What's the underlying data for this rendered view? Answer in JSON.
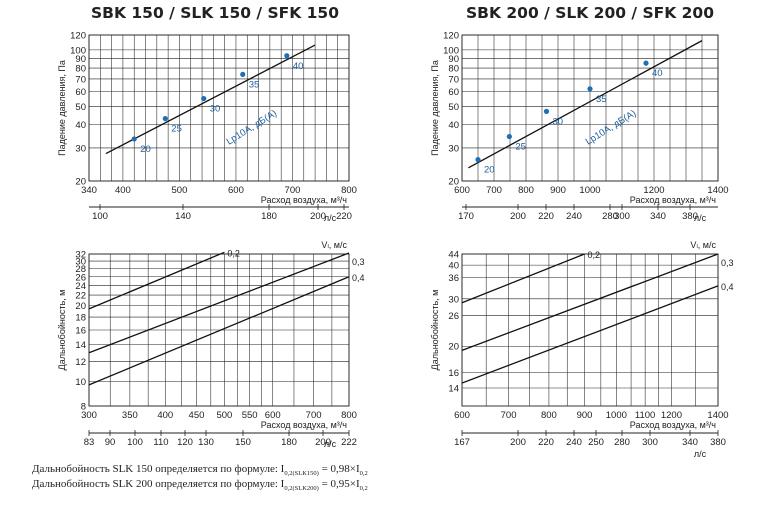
{
  "chart_data": [
    {
      "type": "line",
      "title": "SBK 150 / SLK 150 / SFK 150",
      "ylabel": "Падение давления, Па",
      "xlabel": "Расход воздуха, м³/ч",
      "x2label": "л/с",
      "ylog": true,
      "xlim": [
        340,
        800
      ],
      "ylim": [
        20,
        120
      ],
      "xticks": [
        "340",
        "400",
        "500",
        "600",
        "700",
        "800"
      ],
      "x2ticks": [
        "100",
        "140",
        "180",
        "200",
        "220"
      ],
      "yticks": [
        "20",
        "30",
        "40",
        "50",
        "60",
        "70",
        "80",
        "90",
        "100",
        "120"
      ],
      "series": [
        {
          "x": [
            370,
            740
          ],
          "y": [
            28,
            106
          ]
        }
      ],
      "points": [
        {
          "x": 420,
          "y": 33.5,
          "label": "20"
        },
        {
          "x": 475,
          "y": 43,
          "label": "25"
        },
        {
          "x": 543,
          "y": 55,
          "label": "30"
        },
        {
          "x": 612,
          "y": 74,
          "label": "35"
        },
        {
          "x": 690,
          "y": 93,
          "label": "40"
        }
      ],
      "annotation": "Lp10A, дБ(А)"
    },
    {
      "type": "line",
      "title": "SBK 200 / SLK 200 / SFK 200",
      "ylabel": "Падение давления, Па",
      "xlabel": "Расход воздуха, м³/ч",
      "x2label": "л/с",
      "ylog": true,
      "xlim": [
        600,
        1400
      ],
      "ylim": [
        20,
        120
      ],
      "xticks": [
        "600",
        "700",
        "800",
        "900",
        "1000",
        "1200",
        "1400"
      ],
      "x2ticks": [
        "170",
        "200",
        "220",
        "240",
        "280",
        "300",
        "340",
        "380"
      ],
      "yticks": [
        "20",
        "30",
        "40",
        "50",
        "60",
        "70",
        "80",
        "90",
        "100",
        "120"
      ],
      "series": [
        {
          "x": [
            620,
            1350
          ],
          "y": [
            23.5,
            112
          ]
        }
      ],
      "points": [
        {
          "x": 650,
          "y": 26,
          "label": "20"
        },
        {
          "x": 748,
          "y": 34.5,
          "label": "25"
        },
        {
          "x": 864,
          "y": 47,
          "label": "30"
        },
        {
          "x": 1000,
          "y": 62,
          "label": "35"
        },
        {
          "x": 1175,
          "y": 85,
          "label": "40"
        }
      ],
      "annotation": "Lp10A, дБ(А)"
    },
    {
      "type": "line",
      "ylabel": "Дальнобойность, м",
      "xlabel": "Расход воздуха, м³/ч",
      "x2label": "л/с",
      "legend_title": "Vₗ, м/с",
      "xlog": true,
      "ylog": true,
      "xlim": [
        300,
        800
      ],
      "ylim": [
        8,
        32
      ],
      "xticks": [
        "300",
        "350",
        "400",
        "450",
        "500",
        "550",
        "600",
        "700",
        "800"
      ],
      "x2ticks": [
        "83",
        "90",
        "100",
        "110",
        "120",
        "130",
        "150",
        "180",
        "200",
        "222"
      ],
      "yticks": [
        "8",
        "10",
        "12",
        "14",
        "16",
        "18",
        "20",
        "22",
        "24",
        "26",
        "28",
        "30",
        "32"
      ],
      "series": [
        {
          "name": "0,2",
          "x": [
            300,
            500
          ],
          "y": [
            19.4,
            32.5
          ]
        },
        {
          "name": "0,3",
          "x": [
            300,
            800
          ],
          "y": [
            13,
            32.3
          ]
        },
        {
          "name": "0,4",
          "x": [
            300,
            800
          ],
          "y": [
            9.7,
            26
          ]
        }
      ]
    },
    {
      "type": "line",
      "ylabel": "Дальнобойность, м",
      "xlabel": "Расход воздуха, м³/ч",
      "x2label": "л/с",
      "legend_title": "Vₗ, м/с",
      "xlog": true,
      "ylog": true,
      "xlim": [
        600,
        1400
      ],
      "ylim": [
        12,
        44
      ],
      "xticks": [
        "600",
        "700",
        "800",
        "900",
        "1000",
        "1100",
        "1200",
        "1400"
      ],
      "x2ticks": [
        "167",
        "200",
        "220",
        "240",
        "250",
        "280",
        "300",
        "340",
        "380"
      ],
      "yticks": [
        "14",
        "16",
        "20",
        "26",
        "30",
        "36",
        "40",
        "44"
      ],
      "series": [
        {
          "name": "0,2",
          "x": [
            600,
            900
          ],
          "y": [
            29,
            44
          ]
        },
        {
          "name": "0,3",
          "x": [
            600,
            1400
          ],
          "y": [
            19.3,
            44
          ]
        },
        {
          "name": "0,4",
          "x": [
            600,
            1400
          ],
          "y": [
            14.6,
            33.5
          ]
        }
      ]
    }
  ],
  "formulas": {
    "line1_text": "Дальнобойность SLK 150 определяется по формуле: I",
    "line1_sub1": "0,2(SLK150)",
    "line1_mid": " = 0,98×I",
    "line1_sub2": "0,2",
    "line2_text": "Дальнобойность SLK 200 определяется по формуле: I",
    "line2_sub1": "0,2(SLK200)",
    "line2_mid": " = 0,95×I",
    "line2_sub2": "0,2"
  }
}
